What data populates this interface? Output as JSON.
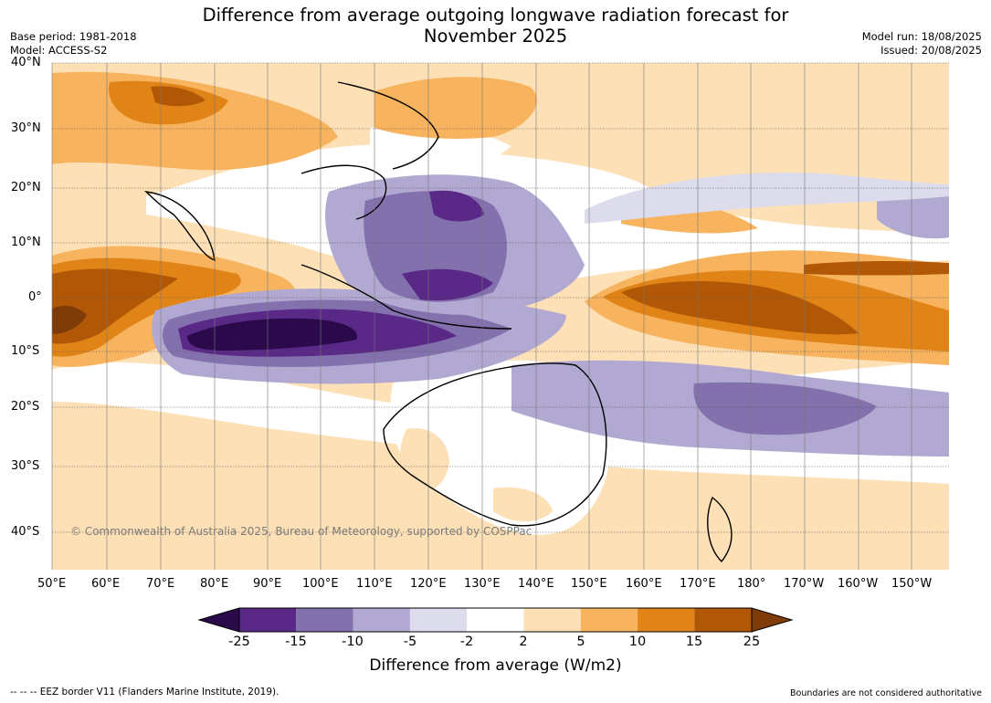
{
  "header": {
    "title_line1": "Difference from average outgoing longwave radiation forecast for",
    "title_line2": "November 2025",
    "base_period": "Base period: 1981-2018",
    "model": "Model: ACCESS-S2",
    "model_run": "Model run: 18/08/2025",
    "issued": "Issued: 20/08/2025"
  },
  "map": {
    "lat_labels": [
      "40°N",
      "30°N",
      "20°N",
      "10°N",
      "0°",
      "10°S",
      "20°S",
      "30°S",
      "40°S"
    ],
    "lon_labels": [
      "50°E",
      "60°E",
      "70°E",
      "80°E",
      "90°E",
      "100°E",
      "110°E",
      "120°E",
      "130°E",
      "140°E",
      "150°E",
      "160°E",
      "170°E",
      "180°",
      "170°W",
      "160°W",
      "150°W"
    ],
    "copyright": "© Commonwealth of Australia 2025, Bureau of Meteorology, supported by COSPPac"
  },
  "colorbar": {
    "ticks": [
      "-25",
      "-15",
      "-10",
      "-5",
      "-2",
      "2",
      "5",
      "10",
      "15",
      "25"
    ],
    "title": "Difference from average (W/m2)",
    "colors": [
      "#2a0a4a",
      "#5a2886",
      "#8371ae",
      "#b1a9d2",
      "#dcdcec",
      "#ffffff",
      "#fde0b6",
      "#f7b35e",
      "#e18418",
      "#b15807",
      "#7f3b08"
    ]
  },
  "footer": {
    "eez_note": "--  --  -- EEZ border V11 (Flanders Marine Institute, 2019).",
    "disclaimer": "Boundaries are not considered authoritative"
  }
}
